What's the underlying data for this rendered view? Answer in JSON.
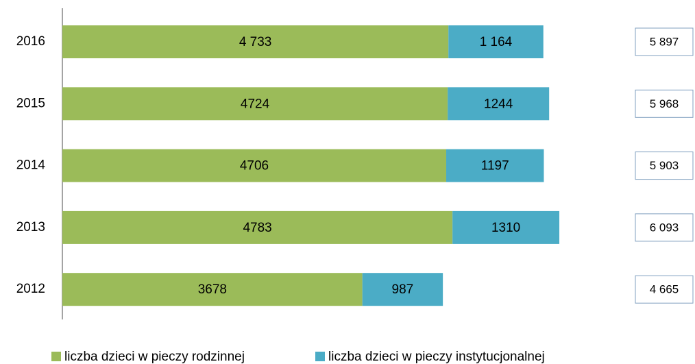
{
  "chart_data": {
    "type": "stacked-barh",
    "categories": [
      "2016",
      "2015",
      "2014",
      "2013",
      "2012"
    ],
    "series": [
      {
        "name": "liczba dzieci w pieczy rodzinnej",
        "color": "#9bbb59",
        "values": [
          4733,
          4724,
          4706,
          4783,
          3678
        ],
        "value_labels": [
          "4 733",
          "4724",
          "4706",
          "4783",
          "3678"
        ]
      },
      {
        "name": "liczba dzieci w pieczy instytucjonalnej",
        "color": "#4bacc6",
        "values": [
          1164,
          1244,
          1197,
          1310,
          987
        ],
        "value_labels": [
          "1 164",
          "1244",
          "1197",
          "1310",
          "987"
        ]
      }
    ],
    "totals": [
      5897,
      5968,
      5903,
      6093,
      4665
    ],
    "total_labels": [
      "5 897",
      "5 968",
      "5 903",
      "6 093",
      "4 665"
    ],
    "xlim": [
      0,
      7000
    ],
    "legend": "bottom"
  }
}
